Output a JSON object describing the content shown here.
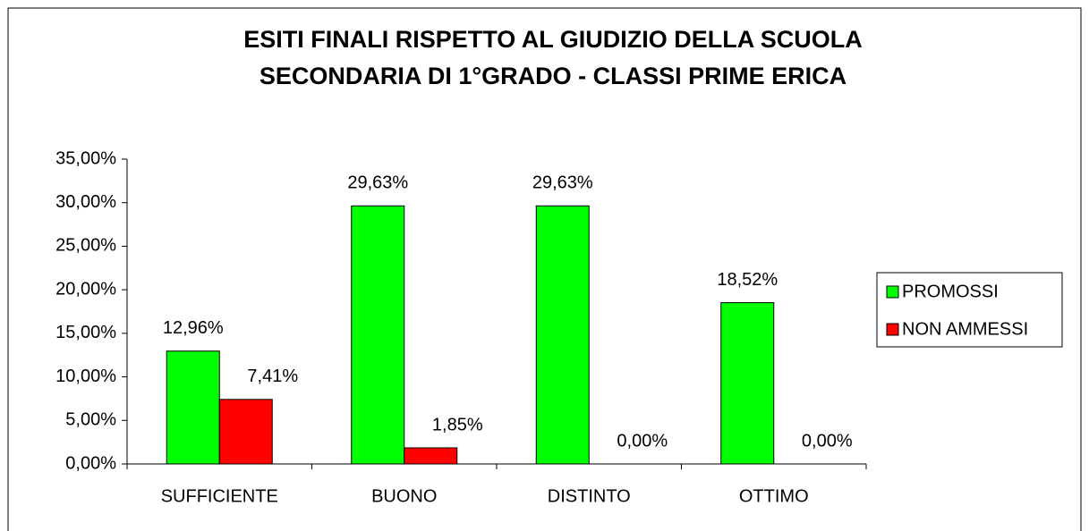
{
  "chart_data": {
    "type": "bar",
    "title": [
      "ESITI FINALI RISPETTO AL GIUDIZIO DELLA SCUOLA",
      "SECONDARIA DI 1°GRADO - CLASSI PRIME ERICA"
    ],
    "categories": [
      "SUFFICIENTE",
      "BUONO",
      "DISTINTO",
      "OTTIMO"
    ],
    "series": [
      {
        "name": "PROMOSSI",
        "color": "#00ff00",
        "values": [
          12.96,
          29.63,
          29.63,
          18.52
        ],
        "value_labels": [
          "12,96%",
          "29,63%",
          "29,63%",
          "18,52%"
        ]
      },
      {
        "name": "NON AMMESSI",
        "color": "#ff0000",
        "values": [
          7.41,
          1.85,
          0,
          0
        ],
        "value_labels": [
          "7,41%",
          "1,85%",
          "0,00%",
          "0,00%"
        ]
      }
    ],
    "ylim": [
      0,
      35
    ],
    "yticks": [
      {
        "value": 0,
        "label": "0,00%"
      },
      {
        "value": 5,
        "label": "5,00%"
      },
      {
        "value": 10,
        "label": "10,00%"
      },
      {
        "value": 15,
        "label": "15,00%"
      },
      {
        "value": 20,
        "label": "20,00%"
      },
      {
        "value": 25,
        "label": "25,00%"
      },
      {
        "value": 30,
        "label": "30,00%"
      },
      {
        "value": 35,
        "label": "35,00%"
      }
    ],
    "grid": false,
    "legend": "right"
  }
}
